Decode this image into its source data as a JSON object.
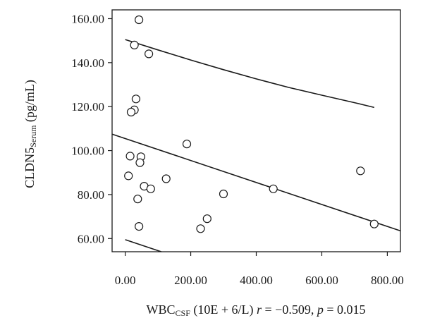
{
  "chart_data": {
    "type": "scatter",
    "title": "",
    "xlabel": {
      "main": "WBC",
      "sub": "CSF",
      "unit": " (10E + 6/L) ",
      "r_symbol": "r",
      "r_text": " = −0.509, ",
      "p_symbol": "p",
      "p_text": " = 0.015"
    },
    "ylabel": {
      "main": "CLDN5",
      "sub": "Serum",
      "unit": "  (pg/mL)"
    },
    "xlim": [
      -40,
      840
    ],
    "ylim": [
      54,
      164
    ],
    "x_ticks": [
      0,
      200,
      400,
      600,
      800
    ],
    "x_tick_labels": [
      "0.00",
      "200.00",
      "400.00",
      "600.00",
      "800.00"
    ],
    "y_ticks": [
      60,
      80,
      100,
      120,
      140,
      160
    ],
    "y_tick_labels": [
      "60.00",
      "80.00",
      "100.00",
      "120.00",
      "140.00",
      "160.00"
    ],
    "points": [
      {
        "x": 42,
        "y": 159.5
      },
      {
        "x": 28,
        "y": 148
      },
      {
        "x": 72,
        "y": 144
      },
      {
        "x": 33,
        "y": 123.5
      },
      {
        "x": 28,
        "y": 118.5
      },
      {
        "x": 18,
        "y": 117.5
      },
      {
        "x": 188,
        "y": 103
      },
      {
        "x": 15,
        "y": 97.5
      },
      {
        "x": 48,
        "y": 97.2
      },
      {
        "x": 45,
        "y": 94.5
      },
      {
        "x": 10,
        "y": 88.5
      },
      {
        "x": 125,
        "y": 87.2
      },
      {
        "x": 58,
        "y": 83.8
      },
      {
        "x": 78,
        "y": 82.6
      },
      {
        "x": 452,
        "y": 82.6
      },
      {
        "x": 300,
        "y": 80.3
      },
      {
        "x": 38,
        "y": 78
      },
      {
        "x": 718,
        "y": 90.8
      },
      {
        "x": 250,
        "y": 69
      },
      {
        "x": 760,
        "y": 66.6
      },
      {
        "x": 42,
        "y": 65.5
      },
      {
        "x": 230,
        "y": 64.5
      }
    ],
    "regression_line": {
      "x": [
        -40,
        840
      ],
      "y": [
        107.5,
        63.5
      ]
    },
    "upper_curve": {
      "x": [
        0,
        100,
        200,
        300,
        400,
        500,
        600,
        700,
        760
      ],
      "y": [
        150.5,
        145.8,
        141.2,
        136.8,
        132.6,
        128.7,
        125.2,
        121.8,
        119.6
      ]
    },
    "lower_curve": {
      "x": [
        0,
        110
      ],
      "y": [
        59.5,
        54
      ]
    },
    "grid": false,
    "legend": "none"
  }
}
